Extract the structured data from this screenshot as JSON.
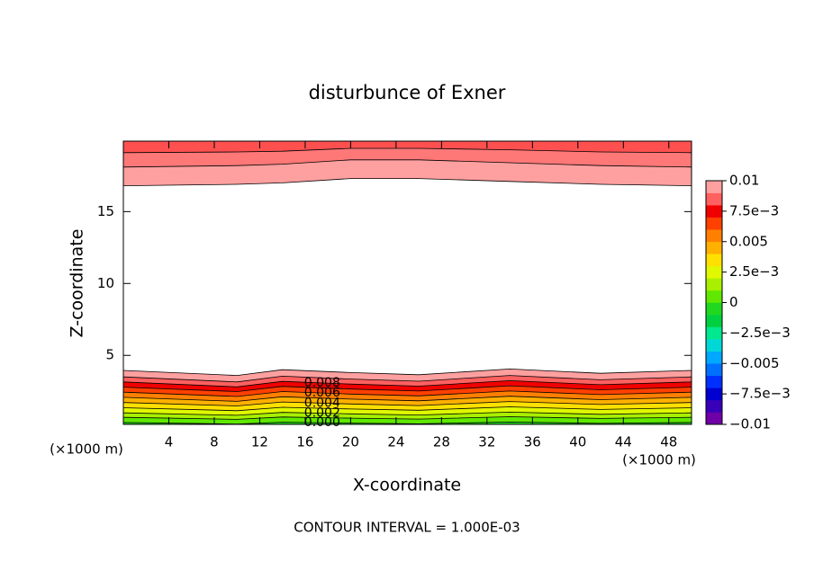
{
  "chart_data": {
    "type": "contour",
    "title": "disturbunce of Exner",
    "xlabel": "X-coordinate",
    "ylabel": "Z-coordinate",
    "xunit": "(×1000 m)",
    "yunit": "(×1000 m)",
    "footnote": "CONTOUR INTERVAL = 1.000E-03",
    "xlim": [
      0,
      50
    ],
    "ylim": [
      0.2,
      19.9
    ],
    "xticks": [
      4,
      8,
      12,
      16,
      20,
      24,
      28,
      32,
      36,
      40,
      44,
      48
    ],
    "yticks": [
      5,
      10,
      15
    ],
    "x": [
      0,
      10,
      14,
      20,
      26,
      34,
      42,
      50
    ],
    "contours": [
      {
        "level": 0.01,
        "color": "#ffa0a0",
        "z": [
          3.95,
          3.6,
          4.0,
          3.8,
          3.65,
          4.05,
          3.75,
          3.95
        ]
      },
      {
        "level": 0.009,
        "color": "#ff6060",
        "z": [
          3.5,
          3.15,
          3.55,
          3.35,
          3.2,
          3.6,
          3.3,
          3.5
        ]
      },
      {
        "level": 0.008,
        "color": "#f00000",
        "z": [
          3.15,
          2.81,
          3.19,
          3.0,
          2.86,
          3.24,
          2.96,
          3.15
        ]
      },
      {
        "level": 0.007,
        "color": "#ff4000",
        "z": [
          2.79,
          2.48,
          2.84,
          2.66,
          2.52,
          2.88,
          2.61,
          2.79
        ]
      },
      {
        "level": 0.006,
        "color": "#ff8000",
        "z": [
          2.44,
          2.14,
          2.48,
          2.31,
          2.18,
          2.52,
          2.27,
          2.44
        ]
      },
      {
        "level": 0.005,
        "color": "#ffb000",
        "z": [
          2.08,
          1.8,
          2.12,
          1.96,
          1.84,
          2.16,
          1.92,
          2.08
        ]
      },
      {
        "level": 0.004,
        "color": "#ffe000",
        "z": [
          1.72,
          1.48,
          1.76,
          1.62,
          1.51,
          1.79,
          1.58,
          1.72
        ]
      },
      {
        "level": 0.003,
        "color": "#e0f800",
        "z": [
          1.36,
          1.15,
          1.39,
          1.27,
          1.18,
          1.42,
          1.24,
          1.36
        ]
      },
      {
        "level": 0.002,
        "color": "#a8f000",
        "z": [
          1.0,
          0.83,
          1.03,
          0.93,
          0.85,
          1.05,
          0.9,
          1.0
        ]
      },
      {
        "level": 0.001,
        "color": "#60e800",
        "z": [
          0.69,
          0.55,
          0.71,
          0.63,
          0.57,
          0.73,
          0.61,
          0.69
        ]
      },
      {
        "level": 0,
        "color": "#20d820",
        "z": [
          0.33,
          0.22,
          0.35,
          0.29,
          0.24,
          0.36,
          0.27,
          0.33
        ]
      }
    ],
    "top_contours": [
      {
        "color": "#ffa0a0",
        "z": [
          16.8,
          16.9,
          17.0,
          17.3,
          17.3,
          17.1,
          16.9,
          16.8
        ]
      },
      {
        "color": "#ff7878",
        "z": [
          18.1,
          18.2,
          18.3,
          18.6,
          18.6,
          18.4,
          18.2,
          18.1
        ]
      },
      {
        "color": "#ff5050",
        "z": [
          19.1,
          19.15,
          19.2,
          19.4,
          19.4,
          19.3,
          19.15,
          19.1
        ]
      }
    ],
    "contour_labels": [
      {
        "value": 0.008,
        "label": "0.008"
      },
      {
        "value": 0.006,
        "label": "0.006"
      },
      {
        "value": 0.004,
        "label": "0.004"
      },
      {
        "value": 0.002,
        "label": "0.002"
      },
      {
        "value": 0,
        "label": "0.000"
      }
    ],
    "colorbar": {
      "clim": [
        -0.01,
        0.01
      ],
      "colors": [
        "#7000a8",
        "#3800b8",
        "#0000d0",
        "#0030ff",
        "#0070ff",
        "#00a8ff",
        "#00d8d8",
        "#00e890",
        "#00d040",
        "#20d820",
        "#60e800",
        "#a8f000",
        "#e0f800",
        "#ffe000",
        "#ffb000",
        "#ff8000",
        "#ff4000",
        "#f00000",
        "#ff6060",
        "#ffa0a0"
      ],
      "ticks": [
        0.01,
        {
          "value": 0.0075,
          "label": "7.5e−3"
        },
        0.005,
        {
          "value": 0.0025,
          "label": "2.5e−3"
        },
        0,
        {
          "value": -0.0025,
          "label": "−2.5e−3"
        },
        {
          "value": -0.005,
          "label": "−0.005"
        },
        {
          "value": -0.0075,
          "label": "−7.5e−3"
        },
        {
          "value": -0.01,
          "label": "−0.01"
        }
      ]
    }
  }
}
